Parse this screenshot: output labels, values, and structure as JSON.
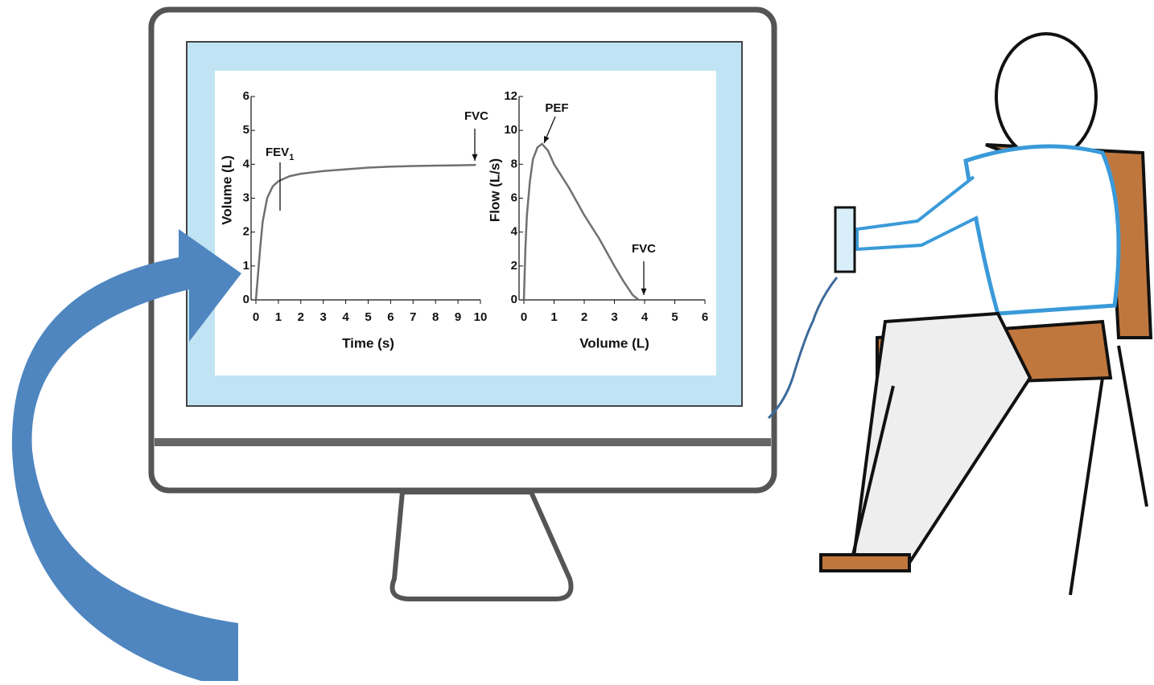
{
  "chart_data": [
    {
      "type": "line",
      "ylabel": "Volume (L)",
      "xlabel": "Time (s)",
      "x": [
        0,
        0.1,
        0.2,
        0.3,
        0.5,
        0.75,
        1,
        1.5,
        2,
        3,
        4,
        5,
        6,
        7,
        8,
        9,
        9.8
      ],
      "series": [
        {
          "color": "#707070",
          "values": [
            0,
            0.8,
            1.6,
            2.3,
            3.0,
            3.35,
            3.5,
            3.65,
            3.72,
            3.8,
            3.85,
            3.9,
            3.93,
            3.95,
            3.96,
            3.97,
            3.98
          ]
        }
      ],
      "xlim": [
        0,
        10
      ],
      "xticks": [
        0,
        1,
        2,
        3,
        4,
        5,
        6,
        7,
        8,
        9,
        10
      ],
      "ylim": [
        0,
        6
      ],
      "yticks": [
        0,
        1,
        2,
        3,
        4,
        5,
        6
      ],
      "annotations": [
        {
          "text": "FEV",
          "subscript": "1"
        },
        {
          "text": "FVC"
        }
      ]
    },
    {
      "type": "line",
      "ylabel": "Flow (L/s)",
      "xlabel": "Volume (L)",
      "x": [
        0,
        0.05,
        0.1,
        0.2,
        0.3,
        0.45,
        0.6,
        0.8,
        1,
        1.5,
        2,
        2.5,
        3,
        3.3,
        3.6,
        3.8
      ],
      "series": [
        {
          "color": "#707070",
          "values": [
            0,
            3,
            5,
            7,
            8.3,
            9,
            9.2,
            8.8,
            8,
            6.6,
            5,
            3.6,
            2,
            1.1,
            0.3,
            0
          ]
        }
      ],
      "xlim": [
        0,
        6
      ],
      "xticks": [
        0,
        1,
        2,
        3,
        4,
        5,
        6
      ],
      "ylim": [
        0,
        12
      ],
      "yticks": [
        0,
        2,
        4,
        6,
        8,
        10,
        12
      ],
      "annotations": [
        {
          "text": "PEF"
        },
        {
          "text": "FVC"
        }
      ]
    }
  ]
}
